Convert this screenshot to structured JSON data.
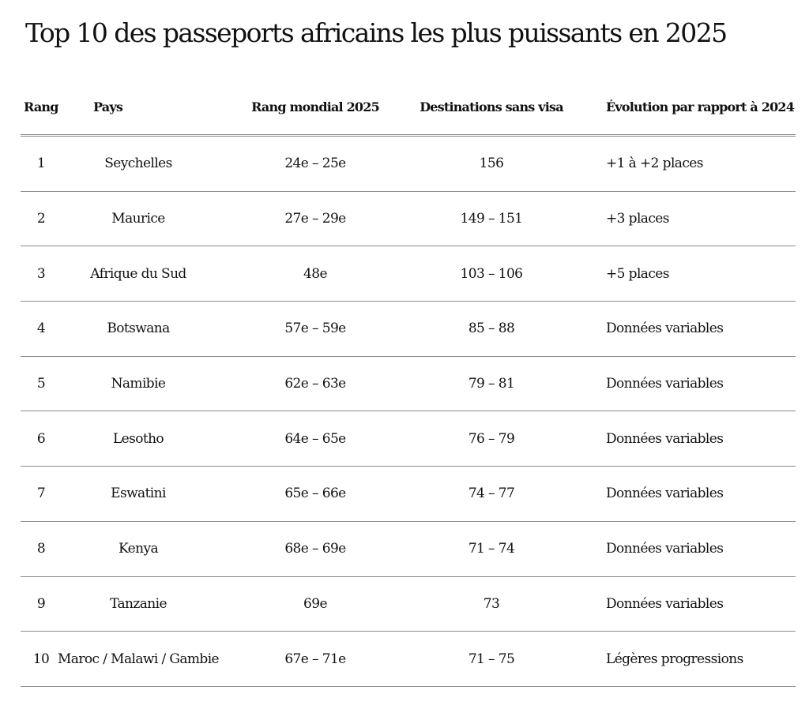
{
  "title": "Top 10 des passeports africains les plus puissants en 2025",
  "headers": {
    "rank": "Rang",
    "country": "Pays",
    "world_rank": "Rang mondial 2025",
    "destinations": "Destinations sans visa",
    "evolution": "Évolution par rapport à 2024"
  },
  "rows": [
    {
      "rank": "1",
      "country": "Seychelles",
      "world_rank": "24e – 25e",
      "destinations": "156",
      "evolution": "+1 à +2 places"
    },
    {
      "rank": "2",
      "country": "Maurice",
      "world_rank": "27e – 29e",
      "destinations": "149 – 151",
      "evolution": "+3 places"
    },
    {
      "rank": "3",
      "country": "Afrique du Sud",
      "world_rank": "48e",
      "destinations": "103 – 106",
      "evolution": "+5 places"
    },
    {
      "rank": "4",
      "country": "Botswana",
      "world_rank": "57e – 59e",
      "destinations": "85 – 88",
      "evolution": "Données variables"
    },
    {
      "rank": "5",
      "country": "Namibie",
      "world_rank": "62e – 63e",
      "destinations": "79 – 81",
      "evolution": "Données variables"
    },
    {
      "rank": "6",
      "country": "Lesotho",
      "world_rank": "64e – 65e",
      "destinations": "76 – 79",
      "evolution": "Données variables"
    },
    {
      "rank": "7",
      "country": "Eswatini",
      "world_rank": "65e – 66e",
      "destinations": "74 – 77",
      "evolution": "Données variables"
    },
    {
      "rank": "8",
      "country": "Kenya",
      "world_rank": "68e – 69e",
      "destinations": "71 – 74",
      "evolution": "Données variables"
    },
    {
      "rank": "9",
      "country": "Tanzanie",
      "world_rank": "69e",
      "destinations": "73",
      "evolution": "Données variables"
    },
    {
      "rank": "10",
      "country": "Maroc / Malawi / Gambie",
      "world_rank": "67e – 71e",
      "destinations": "71 – 75",
      "evolution": "Légères progressions"
    }
  ]
}
